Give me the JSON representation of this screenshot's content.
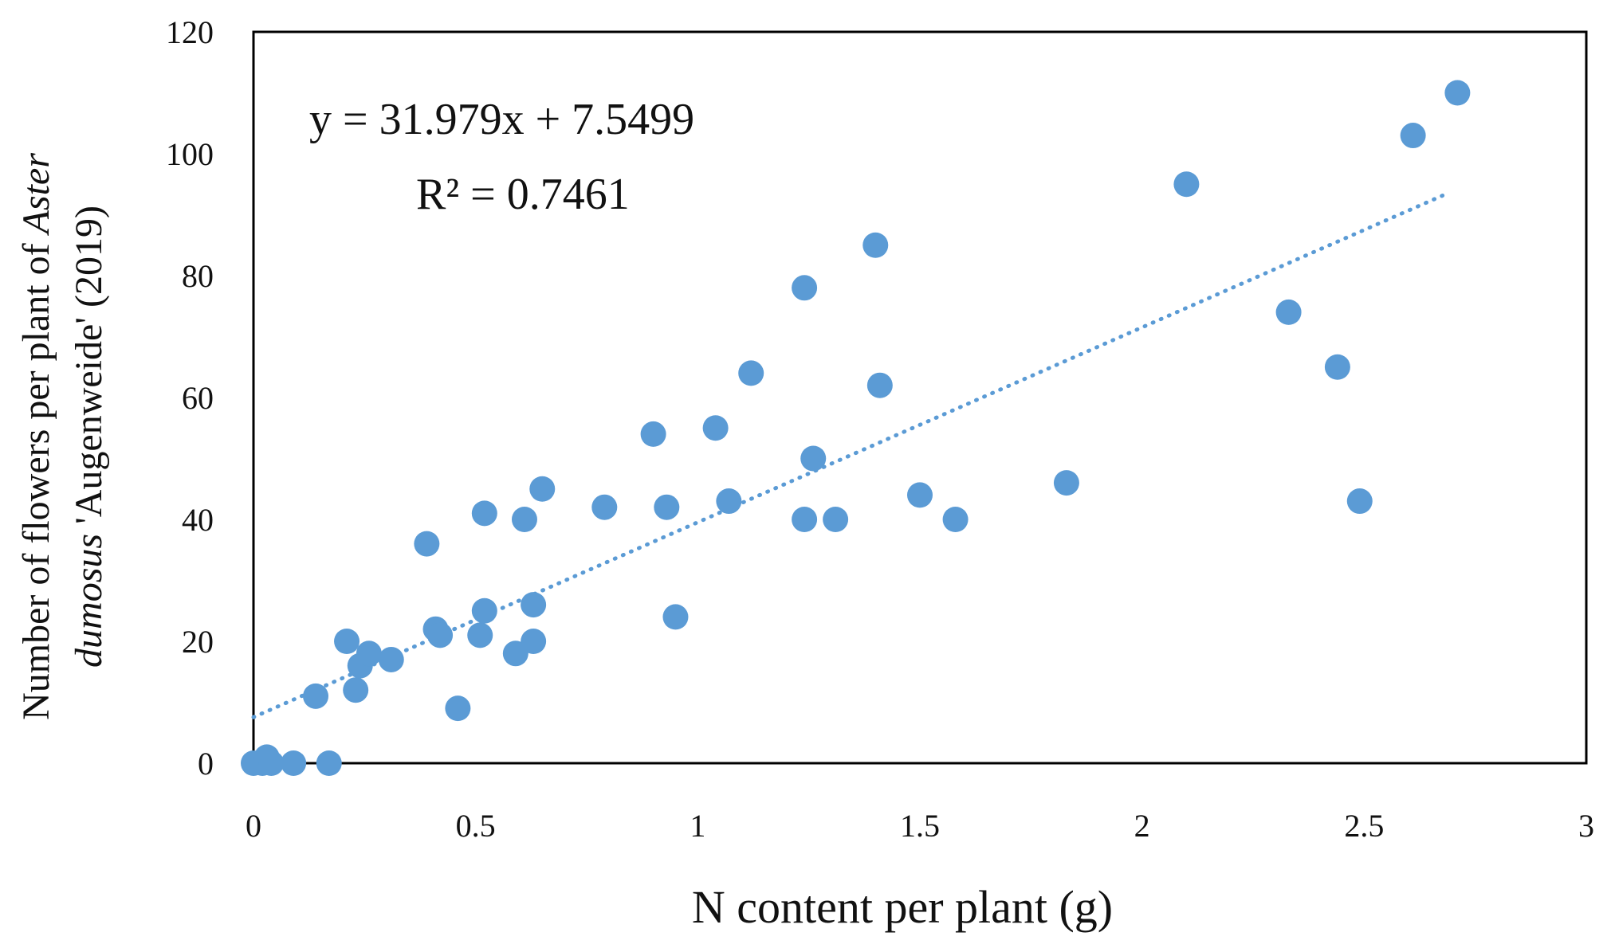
{
  "chart_data": {
    "type": "scatter",
    "title": "",
    "xlabel": "N content per plant (g)",
    "ylabel": {
      "line1": "Number of flowers per plant of Aster",
      "line1_plain": "Number of flowers per plant of ",
      "line1_italic": "Aster",
      "line2_italic": "dumosus",
      "line2_rest": " 'Augenweide' (2019)"
    },
    "xlim": [
      0,
      3
    ],
    "ylim": [
      0,
      120
    ],
    "xticks": [
      0,
      0.5,
      1,
      1.5,
      2,
      2.5,
      3
    ],
    "xtick_labels": [
      "0",
      "0.5",
      "1",
      "1.5",
      "2",
      "2.5",
      "3"
    ],
    "yticks": [
      0,
      20,
      40,
      60,
      80,
      100,
      120
    ],
    "ytick_labels": [
      "0",
      "20",
      "40",
      "60",
      "80",
      "100",
      "120"
    ],
    "grid": false,
    "marker_color": "#5b9bd5",
    "points": [
      {
        "x": 0.0,
        "y": 0
      },
      {
        "x": 0.02,
        "y": 0
      },
      {
        "x": 0.03,
        "y": 1
      },
      {
        "x": 0.04,
        "y": 0
      },
      {
        "x": 0.09,
        "y": 0
      },
      {
        "x": 0.17,
        "y": 0
      },
      {
        "x": 0.14,
        "y": 11
      },
      {
        "x": 0.21,
        "y": 20
      },
      {
        "x": 0.23,
        "y": 12
      },
      {
        "x": 0.24,
        "y": 16
      },
      {
        "x": 0.26,
        "y": 18
      },
      {
        "x": 0.31,
        "y": 17
      },
      {
        "x": 0.39,
        "y": 36
      },
      {
        "x": 0.41,
        "y": 22
      },
      {
        "x": 0.42,
        "y": 21
      },
      {
        "x": 0.46,
        "y": 9
      },
      {
        "x": 0.51,
        "y": 21
      },
      {
        "x": 0.52,
        "y": 25
      },
      {
        "x": 0.52,
        "y": 41
      },
      {
        "x": 0.59,
        "y": 18
      },
      {
        "x": 0.61,
        "y": 40
      },
      {
        "x": 0.63,
        "y": 20
      },
      {
        "x": 0.63,
        "y": 26
      },
      {
        "x": 0.65,
        "y": 45
      },
      {
        "x": 0.79,
        "y": 42
      },
      {
        "x": 0.9,
        "y": 54
      },
      {
        "x": 0.93,
        "y": 42
      },
      {
        "x": 0.95,
        "y": 24
      },
      {
        "x": 1.04,
        "y": 55
      },
      {
        "x": 1.07,
        "y": 43
      },
      {
        "x": 1.12,
        "y": 64
      },
      {
        "x": 1.24,
        "y": 78
      },
      {
        "x": 1.24,
        "y": 40
      },
      {
        "x": 1.26,
        "y": 50
      },
      {
        "x": 1.31,
        "y": 40
      },
      {
        "x": 1.4,
        "y": 85
      },
      {
        "x": 1.41,
        "y": 62
      },
      {
        "x": 1.5,
        "y": 44
      },
      {
        "x": 1.58,
        "y": 40
      },
      {
        "x": 1.83,
        "y": 46
      },
      {
        "x": 2.1,
        "y": 95
      },
      {
        "x": 2.33,
        "y": 74
      },
      {
        "x": 2.44,
        "y": 65
      },
      {
        "x": 2.49,
        "y": 43
      },
      {
        "x": 2.61,
        "y": 103
      },
      {
        "x": 2.71,
        "y": 110
      }
    ],
    "trendline": {
      "type": "linear",
      "style": "dotted",
      "slope": 31.979,
      "intercept": 7.5499,
      "x_range": [
        0,
        2.69
      ],
      "equation_label": "y = 31.979x + 7.5499",
      "r2_label": "R² = 0.7461"
    }
  }
}
